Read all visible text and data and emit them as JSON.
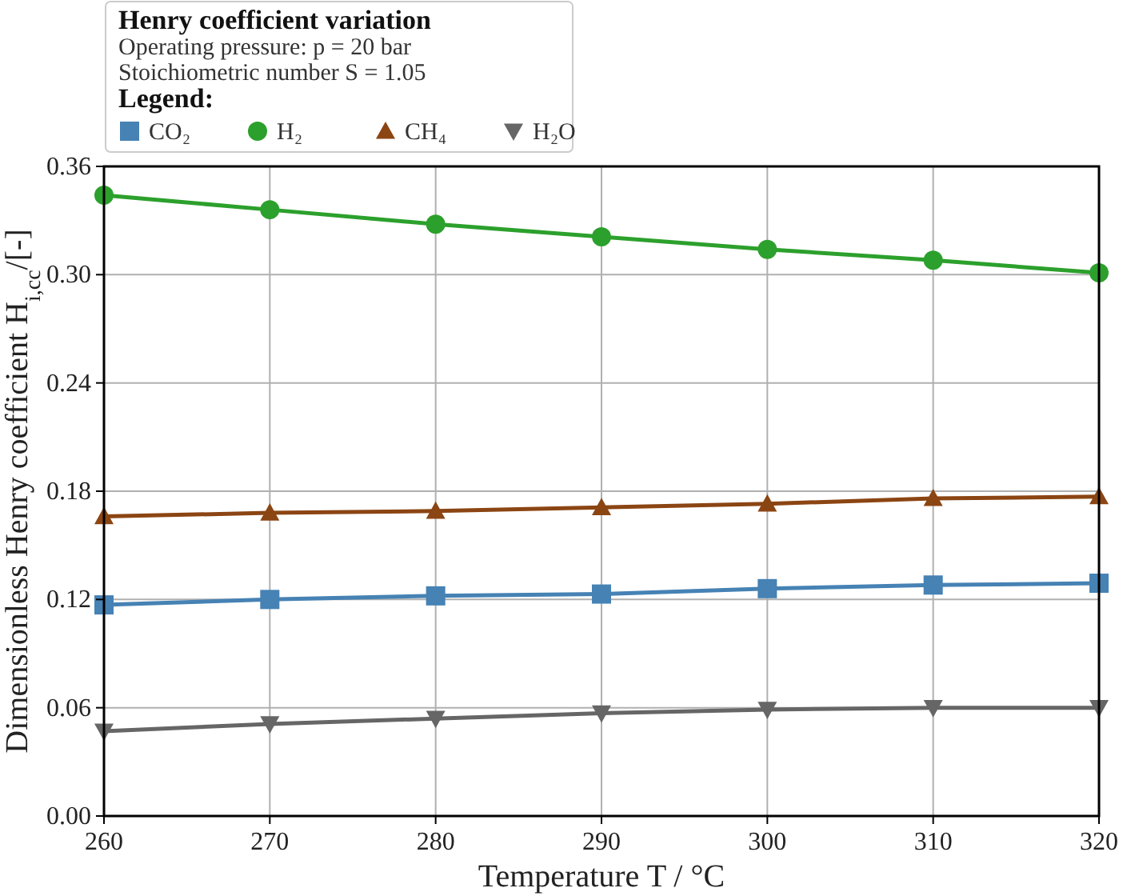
{
  "chart_data": {
    "type": "line",
    "title": "Henry coefficient variation",
    "subtitle": "Operating pressure: p = 20  bar",
    "annotations": [
      "Stoichiometric number S = 1.05"
    ],
    "legend_title": "Legend:",
    "xlabel": "Temperature T / °C",
    "ylabel": "Dimensionless Henry coefficient H$_{i,cc}$/[-]",
    "x": [
      260,
      270,
      280,
      290,
      300,
      310,
      320
    ],
    "series": [
      {
        "name": "CO₂",
        "color": "#4682b4",
        "marker": "square",
        "values": [
          0.117,
          0.12,
          0.122,
          0.123,
          0.126,
          0.128,
          0.129
        ]
      },
      {
        "name": "H₂",
        "color": "#2ca02c",
        "marker": "circle",
        "values": [
          0.344,
          0.336,
          0.328,
          0.321,
          0.314,
          0.308,
          0.301
        ]
      },
      {
        "name": "CH₄",
        "color": "#8b4513",
        "marker": "triangle",
        "values": [
          0.166,
          0.168,
          0.169,
          0.171,
          0.173,
          0.176,
          0.177
        ]
      },
      {
        "name": "H₂O",
        "color": "#666666",
        "marker": "triangle-down",
        "values": [
          0.047,
          0.051,
          0.054,
          0.057,
          0.059,
          0.06,
          0.06
        ]
      }
    ],
    "xlim": [
      260,
      320
    ],
    "xticks": [
      260,
      270,
      280,
      290,
      300,
      310,
      320
    ],
    "ylim": [
      0,
      0.36
    ],
    "yticks": [
      {
        "value": 0,
        "label": "0.00"
      },
      {
        "value": 0.06,
        "label": "0.06"
      },
      {
        "value": 0.12,
        "label": "0.12"
      },
      {
        "value": 0.18,
        "label": "0.18"
      },
      {
        "value": 0.24,
        "label": "0.24"
      },
      {
        "value": 0.3,
        "label": "0.30"
      },
      {
        "value": 0.36,
        "label": "0.36"
      }
    ],
    "grid": true,
    "legend": "top left",
    "line_style": "solid"
  }
}
